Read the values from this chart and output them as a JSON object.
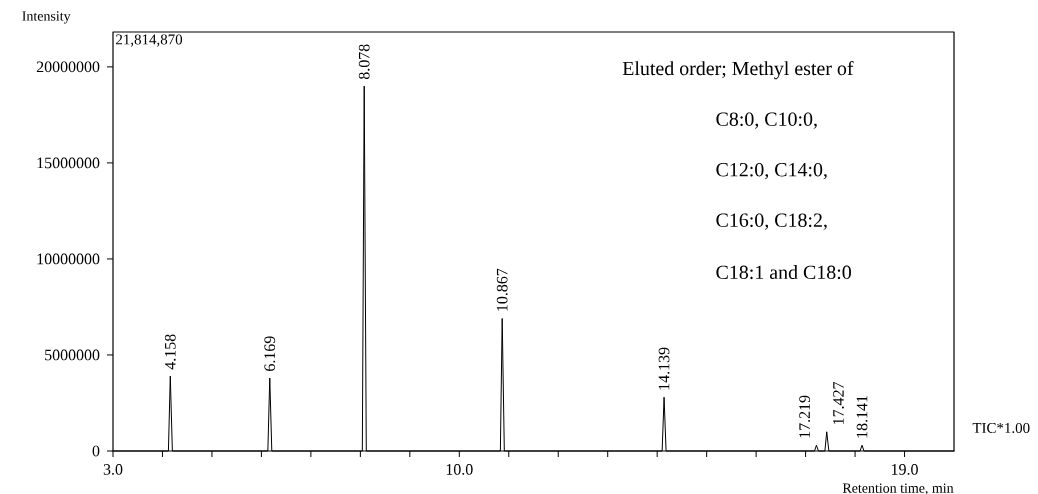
{
  "chart_data": {
    "type": "line",
    "xlabel": "Retention time, min",
    "ylabel": "Intensity",
    "color": "#000000",
    "x": [
      3.0,
      4.12,
      4.158,
      4.2,
      6.13,
      6.169,
      6.21,
      8.04,
      8.078,
      8.12,
      10.83,
      10.867,
      10.91,
      14.1,
      14.139,
      14.18,
      17.18,
      17.219,
      17.26,
      17.39,
      17.427,
      17.47,
      18.1,
      18.141,
      18.18,
      20.0
    ],
    "values": [
      0,
      0,
      3900000,
      0,
      0,
      3800000,
      0,
      0,
      19000000,
      0,
      0,
      6900000,
      0,
      0,
      2800000,
      0,
      0,
      300000,
      0,
      0,
      1000000,
      0,
      0,
      300000,
      0,
      0
    ],
    "xlim": [
      3,
      20
    ],
    "ylim": [
      0,
      21814870
    ],
    "xticks": [
      {
        "value": 3,
        "label": "3.0"
      },
      {
        "value": 4,
        "label": null
      },
      {
        "value": 5,
        "label": null
      },
      {
        "value": 6,
        "label": null
      },
      {
        "value": 7,
        "label": null
      },
      {
        "value": 8,
        "label": null
      },
      {
        "value": 9,
        "label": null
      },
      {
        "value": 10,
        "label": "10.0"
      },
      {
        "value": 11,
        "label": null
      },
      {
        "value": 12,
        "label": null
      },
      {
        "value": 13,
        "label": null
      },
      {
        "value": 14,
        "label": null
      },
      {
        "value": 15,
        "label": null
      },
      {
        "value": 16,
        "label": null
      },
      {
        "value": 17,
        "label": null
      },
      {
        "value": 18,
        "label": null
      },
      {
        "value": 19,
        "label": "19.0"
      }
    ],
    "yticks": [
      0,
      5000000,
      10000000,
      15000000,
      20000000
    ],
    "annotations": [
      "21,814,870",
      "Eluted order; Methyl ester of",
      "C8:0, C10:0,",
      "C12:0, C14:0,",
      "C16:0, C18:2,",
      "C18:1 and C18:0",
      "TIC*1.00",
      {
        "text": "4.158",
        "x": 4.158,
        "y": 3900000
      },
      {
        "text": "6.169",
        "x": 6.169,
        "y": 3800000
      },
      {
        "text": "8.078",
        "x": 8.078,
        "y": 19000000
      },
      {
        "text": "10.867",
        "x": 10.867,
        "y": 6900000
      },
      {
        "text": "14.139",
        "x": 14.139,
        "y": 2800000
      },
      {
        "text": "17.219",
        "x": 17.219,
        "y": 300000
      },
      {
        "text": "17.427",
        "x": 17.427,
        "y": 1000000
      },
      {
        "text": "18.141",
        "x": 18.141,
        "y": 300000
      }
    ]
  }
}
